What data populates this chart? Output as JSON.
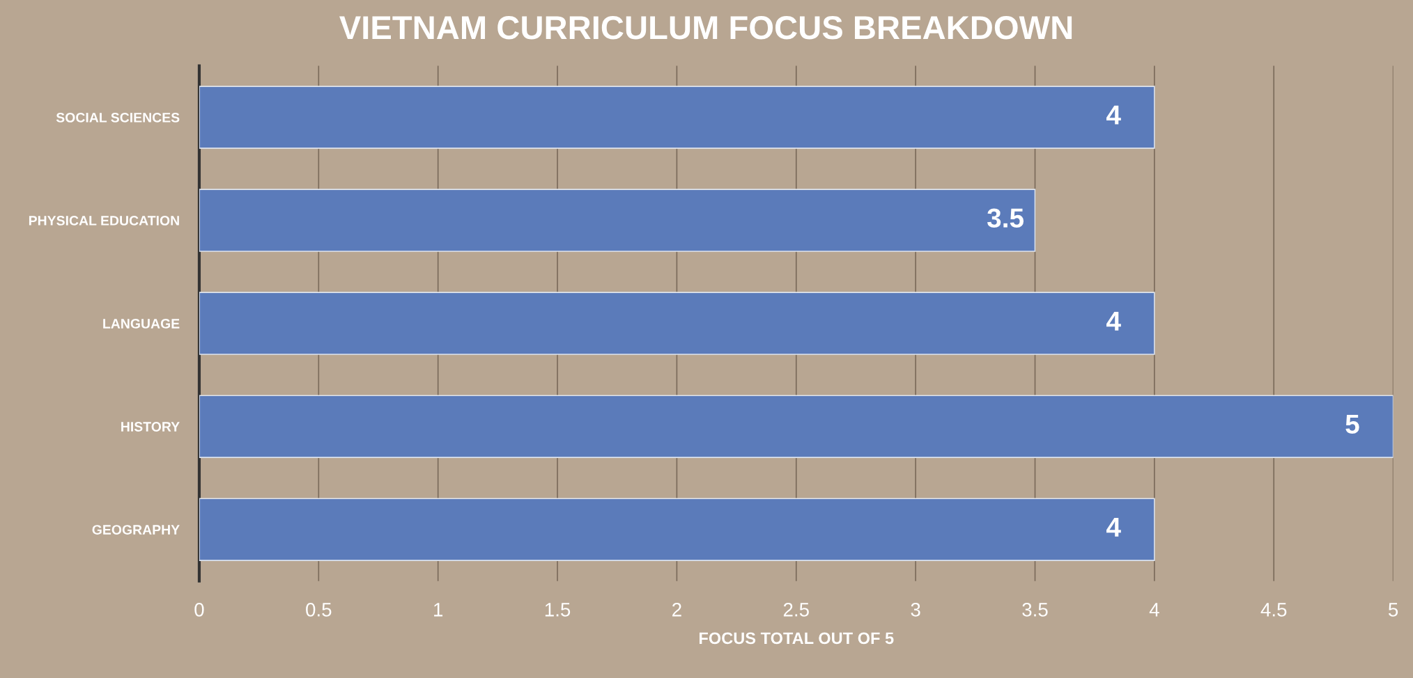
{
  "chart_data": {
    "type": "bar",
    "orientation": "horizontal",
    "title": "VIETNAM CURRICULUM FOCUS BREAKDOWN",
    "xlabel": "FOCUS TOTAL OUT OF 5",
    "categories": [
      "SOCIAL SCIENCES",
      "PHYSICAL EDUCATION",
      "LANGUAGE",
      "HISTORY",
      "GEOGRAPHY"
    ],
    "values": [
      4,
      3.5,
      4,
      5,
      4
    ],
    "color": "#5b7bba",
    "xlim": [
      0,
      5
    ],
    "xticks": [
      0,
      0.5,
      1,
      1.5,
      2,
      2.5,
      3,
      3.5,
      4,
      4.5,
      5
    ],
    "grid": "x",
    "data_labels": true
  }
}
